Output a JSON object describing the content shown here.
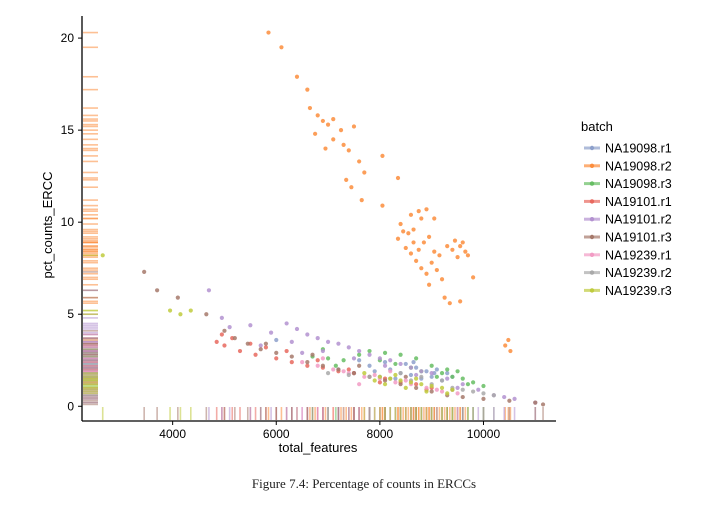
{
  "caption": "Figure 7.4: Percentage of counts in ERCCs",
  "chart_data": {
    "type": "scatter",
    "xlabel": "total_features",
    "ylabel": "pct_counts_ERCC",
    "xlim": [
      2250,
      11400
    ],
    "ylim": [
      -0.8,
      21.2
    ],
    "xticks": [
      4000,
      6000,
      8000,
      10000
    ],
    "yticks": [
      0,
      5,
      10,
      15,
      20
    ],
    "grid": false,
    "rug": true,
    "legend": {
      "title": "batch",
      "position": "right"
    },
    "series": [
      {
        "name": "NA19098.r1",
        "color": "#8DA0CB",
        "points": [
          [
            7200,
            2.0
          ],
          [
            7500,
            1.8
          ],
          [
            7800,
            2.2
          ],
          [
            8000,
            1.6
          ],
          [
            8200,
            2.0
          ],
          [
            8400,
            1.8
          ],
          [
            8500,
            2.3
          ],
          [
            8600,
            1.7
          ],
          [
            8700,
            2.1
          ],
          [
            8800,
            1.5
          ],
          [
            8900,
            1.9
          ],
          [
            9000,
            1.6
          ],
          [
            9100,
            2.0
          ],
          [
            9200,
            1.4
          ],
          [
            9300,
            1.8
          ],
          [
            8300,
            1.5
          ],
          [
            8100,
            2.4
          ],
          [
            7900,
            1.9
          ],
          [
            7600,
            2.5
          ],
          [
            9400,
            1.6
          ],
          [
            6000,
            3.6
          ],
          [
            8650,
            2.4
          ],
          [
            9050,
            1.8
          ]
        ]
      },
      {
        "name": "NA19098.r2",
        "color": "#FC8D3C",
        "points": [
          [
            5850,
            20.3
          ],
          [
            6100,
            19.5
          ],
          [
            6400,
            17.9
          ],
          [
            6600,
            17.2
          ],
          [
            6650,
            16.2
          ],
          [
            6800,
            15.8
          ],
          [
            6900,
            15.5
          ],
          [
            7000,
            15.3
          ],
          [
            6750,
            14.8
          ],
          [
            7100,
            14.5
          ],
          [
            7300,
            14.2
          ],
          [
            6950,
            14.0
          ],
          [
            7400,
            13.9
          ],
          [
            7250,
            15.0
          ],
          [
            7500,
            15.2
          ],
          [
            7100,
            15.6
          ],
          [
            7600,
            13.3
          ],
          [
            7700,
            12.7
          ],
          [
            7350,
            12.3
          ],
          [
            7450,
            11.9
          ],
          [
            7650,
            11.2
          ],
          [
            8050,
            13.6
          ],
          [
            8350,
            12.4
          ],
          [
            8050,
            10.9
          ],
          [
            8750,
            10.6
          ],
          [
            8900,
            10.7
          ],
          [
            8800,
            10.2
          ],
          [
            8600,
            10.4
          ],
          [
            9050,
            10.2
          ],
          [
            8450,
            9.5
          ],
          [
            8350,
            9.1
          ],
          [
            8550,
            9.4
          ],
          [
            8650,
            8.9
          ],
          [
            8750,
            8.5
          ],
          [
            8500,
            8.6
          ],
          [
            8850,
            8.9
          ],
          [
            8950,
            9.2
          ],
          [
            9050,
            8.4
          ],
          [
            9150,
            8.2
          ],
          [
            8700,
            7.9
          ],
          [
            8800,
            7.5
          ],
          [
            8900,
            7.2
          ],
          [
            9000,
            7.8
          ],
          [
            9100,
            7.4
          ],
          [
            9200,
            6.9
          ],
          [
            8950,
            6.6
          ],
          [
            9300,
            8.7
          ],
          [
            9450,
            9.0
          ],
          [
            9400,
            8.5
          ],
          [
            9500,
            8.1
          ],
          [
            9550,
            8.7
          ],
          [
            9650,
            8.4
          ],
          [
            9350,
            5.6
          ],
          [
            9550,
            5.7
          ],
          [
            9800,
            7.0
          ],
          [
            10420,
            3.3
          ],
          [
            10480,
            3.6
          ],
          [
            10520,
            3.0
          ],
          [
            8650,
            9.6
          ],
          [
            8400,
            9.9
          ],
          [
            9250,
            5.9
          ],
          [
            9600,
            8.9
          ],
          [
            8600,
            8.3
          ],
          [
            9700,
            8.2
          ]
        ]
      },
      {
        "name": "NA19098.r3",
        "color": "#66BD63",
        "points": [
          [
            7000,
            2.6
          ],
          [
            7300,
            2.5
          ],
          [
            7600,
            2.8
          ],
          [
            8000,
            2.5
          ],
          [
            8300,
            2.3
          ],
          [
            8600,
            2.1
          ],
          [
            8800,
            1.9
          ],
          [
            9000,
            2.2
          ],
          [
            9200,
            1.8
          ],
          [
            9400,
            1.6
          ],
          [
            9600,
            1.5
          ],
          [
            9800,
            1.3
          ],
          [
            10000,
            1.1
          ],
          [
            8100,
            2.9
          ],
          [
            7800,
            3.0
          ],
          [
            8700,
            2.6
          ],
          [
            9100,
            1.6
          ],
          [
            9300,
            2.0
          ],
          [
            6900,
            3.1
          ],
          [
            6700,
            2.7
          ],
          [
            8400,
            2.8
          ],
          [
            9500,
            1.9
          ],
          [
            9700,
            1.2
          ],
          [
            7150,
            2.2
          ]
        ]
      },
      {
        "name": "NA19101.r1",
        "color": "#E8685E",
        "points": [
          [
            4850,
            3.5
          ],
          [
            5000,
            3.3
          ],
          [
            5300,
            3.0
          ],
          [
            5600,
            2.8
          ],
          [
            5800,
            3.2
          ],
          [
            6000,
            2.6
          ],
          [
            6300,
            2.4
          ],
          [
            6600,
            2.2
          ],
          [
            6900,
            2.1
          ],
          [
            7200,
            1.9
          ],
          [
            7500,
            1.8
          ],
          [
            7800,
            1.6
          ],
          [
            8100,
            1.5
          ],
          [
            8400,
            1.3
          ],
          [
            8700,
            1.2
          ],
          [
            9000,
            1.0
          ],
          [
            5150,
            3.7
          ],
          [
            5500,
            3.4
          ],
          [
            6200,
            3.0
          ],
          [
            6800,
            2.5
          ],
          [
            7400,
            2.0
          ],
          [
            8000,
            1.3
          ],
          [
            8900,
            0.9
          ],
          [
            4950,
            3.9
          ]
        ]
      },
      {
        "name": "NA19101.r2",
        "color": "#B392D0",
        "points": [
          [
            4700,
            6.3
          ],
          [
            5100,
            4.3
          ],
          [
            5500,
            4.4
          ],
          [
            5900,
            4.0
          ],
          [
            6200,
            4.5
          ],
          [
            6400,
            4.2
          ],
          [
            6600,
            3.9
          ],
          [
            6800,
            3.7
          ],
          [
            7000,
            3.5
          ],
          [
            7200,
            3.4
          ],
          [
            7400,
            3.2
          ],
          [
            7600,
            3.0
          ],
          [
            7800,
            2.8
          ],
          [
            8000,
            2.6
          ],
          [
            8200,
            2.5
          ],
          [
            8400,
            2.3
          ],
          [
            8600,
            2.1
          ],
          [
            8800,
            1.9
          ],
          [
            9000,
            1.8
          ],
          [
            9300,
            1.5
          ],
          [
            9600,
            1.2
          ],
          [
            9900,
            0.9
          ],
          [
            10200,
            0.6
          ],
          [
            10600,
            0.4
          ],
          [
            11000,
            0.2
          ],
          [
            6300,
            3.5
          ],
          [
            6900,
            3.0
          ],
          [
            7500,
            2.6
          ],
          [
            8100,
            2.2
          ],
          [
            8700,
            1.7
          ],
          [
            9500,
            1.0
          ],
          [
            4950,
            4.8
          ],
          [
            5700,
            3.3
          ],
          [
            6500,
            2.9
          ],
          [
            10400,
            0.5
          ]
        ]
      },
      {
        "name": "NA19101.r3",
        "color": "#A6796B",
        "points": [
          [
            3450,
            7.3
          ],
          [
            3700,
            6.3
          ],
          [
            4100,
            5.9
          ],
          [
            4650,
            5.0
          ],
          [
            5000,
            4.1
          ],
          [
            5200,
            3.7
          ],
          [
            5450,
            3.4
          ],
          [
            5700,
            3.1
          ],
          [
            6000,
            2.9
          ],
          [
            6300,
            2.7
          ],
          [
            6600,
            2.4
          ],
          [
            6900,
            2.2
          ],
          [
            7200,
            2.0
          ],
          [
            7500,
            1.8
          ],
          [
            7800,
            1.6
          ],
          [
            8100,
            1.4
          ],
          [
            8400,
            1.2
          ],
          [
            8700,
            1.0
          ],
          [
            9000,
            0.8
          ],
          [
            9300,
            0.6
          ],
          [
            9600,
            0.5
          ],
          [
            10000,
            0.4
          ],
          [
            10500,
            0.3
          ],
          [
            11000,
            0.2
          ],
          [
            11150,
            0.1
          ],
          [
            5800,
            3.4
          ],
          [
            6700,
            2.8
          ],
          [
            7600,
            2.2
          ],
          [
            8500,
            1.6
          ],
          [
            9400,
            0.9
          ]
        ]
      },
      {
        "name": "NA19239.r1",
        "color": "#F29BC4",
        "points": [
          [
            6500,
            2.4
          ],
          [
            6800,
            2.2
          ],
          [
            7100,
            2.0
          ],
          [
            7400,
            1.8
          ],
          [
            7700,
            1.6
          ],
          [
            8000,
            1.5
          ],
          [
            8300,
            1.3
          ],
          [
            8600,
            1.2
          ],
          [
            8900,
            1.0
          ],
          [
            9200,
            0.8
          ],
          [
            9500,
            0.7
          ],
          [
            7300,
            1.9
          ],
          [
            7900,
            1.7
          ],
          [
            8500,
            1.4
          ],
          [
            9100,
            0.9
          ],
          [
            7600,
            1.2
          ],
          [
            6900,
            2.6
          ],
          [
            8200,
            1.9
          ]
        ]
      },
      {
        "name": "NA19239.r2",
        "color": "#A9A9A9",
        "points": [
          [
            7000,
            1.8
          ],
          [
            7400,
            1.7
          ],
          [
            7800,
            1.6
          ],
          [
            8200,
            1.5
          ],
          [
            8600,
            1.4
          ],
          [
            9000,
            1.2
          ],
          [
            9400,
            1.0
          ],
          [
            9800,
            0.8
          ],
          [
            10200,
            0.6
          ],
          [
            8400,
            1.8
          ],
          [
            8800,
            1.6
          ],
          [
            9600,
            0.9
          ],
          [
            10000,
            0.7
          ],
          [
            9200,
            1.4
          ]
        ]
      },
      {
        "name": "NA19239.r3",
        "color": "#BFCB3D",
        "points": [
          [
            2650,
            8.2
          ],
          [
            3950,
            5.2
          ],
          [
            4150,
            5.0
          ],
          [
            4350,
            5.2
          ],
          [
            7700,
            1.8
          ],
          [
            8000,
            1.6
          ],
          [
            8200,
            1.5
          ],
          [
            8400,
            1.4
          ],
          [
            8600,
            1.3
          ],
          [
            8800,
            1.2
          ],
          [
            9000,
            1.1
          ],
          [
            9200,
            1.0
          ],
          [
            9400,
            0.9
          ],
          [
            8100,
            1.2
          ],
          [
            8500,
            1.0
          ],
          [
            8900,
            0.8
          ],
          [
            9300,
            0.7
          ],
          [
            7900,
            1.4
          ],
          [
            8300,
            1.7
          ],
          [
            8700,
            1.5
          ]
        ]
      }
    ]
  }
}
